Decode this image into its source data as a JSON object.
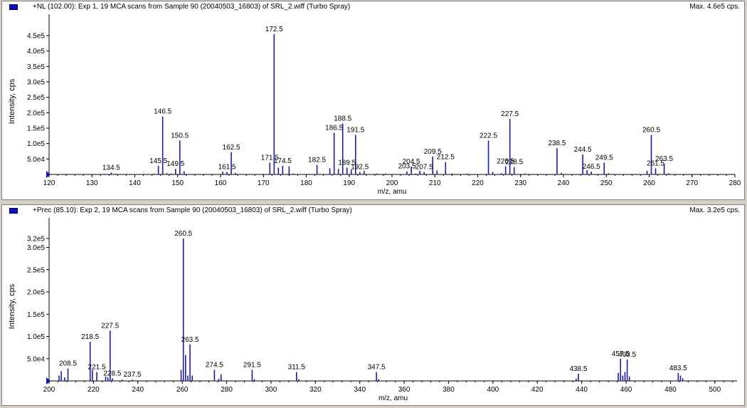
{
  "colors": {
    "peak": "#1c1c9c",
    "marker": "#1010c0",
    "axis": "#000000"
  },
  "chart_data": [
    {
      "type": "bar",
      "title": "+NL (102.00): Exp 1, 19 MCA scans from Sample 90 (20040503_16803) of SRL_2.wiff (Turbo Spray)",
      "max_label": "Max. 4.6e5 cps.",
      "xlabel": "m/z, amu",
      "ylabel": "Intensity, cps",
      "xlim": [
        120,
        280
      ],
      "ylim": [
        0,
        460000
      ],
      "x_ticks": [
        120,
        130,
        140,
        150,
        160,
        170,
        180,
        190,
        200,
        210,
        220,
        230,
        240,
        250,
        260,
        270,
        280
      ],
      "y_ticks": [
        {
          "v": 50000,
          "label": "5.0e4"
        },
        {
          "v": 100000,
          "label": "1.0e5"
        },
        {
          "v": 150000,
          "label": "1.5e5"
        },
        {
          "v": 200000,
          "label": "2.0e5"
        },
        {
          "v": 250000,
          "label": "2.5e5"
        },
        {
          "v": 300000,
          "label": "3.0e5"
        },
        {
          "v": 350000,
          "label": "3.5e5"
        },
        {
          "v": 400000,
          "label": "4.0e5"
        },
        {
          "v": 450000,
          "label": "4.5e5"
        }
      ],
      "peaks": [
        {
          "x": 133.0,
          "y": 2000
        },
        {
          "x": 134.5,
          "y": 6000,
          "label": "134.5"
        },
        {
          "x": 135.5,
          "y": 2000
        },
        {
          "x": 144.5,
          "y": 3000
        },
        {
          "x": 145.5,
          "y": 28000,
          "label": "145.5"
        },
        {
          "x": 146.5,
          "y": 188000,
          "label": "146.5"
        },
        {
          "x": 147.5,
          "y": 4000
        },
        {
          "x": 148.5,
          "y": 3000
        },
        {
          "x": 149.5,
          "y": 18000,
          "label": "149.5"
        },
        {
          "x": 150.5,
          "y": 110000,
          "label": "150.5"
        },
        {
          "x": 151.5,
          "y": 10000
        },
        {
          "x": 160.5,
          "y": 9000
        },
        {
          "x": 161.5,
          "y": 8000,
          "label": "161.5"
        },
        {
          "x": 162.5,
          "y": 72000,
          "label": "162.5"
        },
        {
          "x": 163.5,
          "y": 5000
        },
        {
          "x": 171.5,
          "y": 38000,
          "label": "171.5"
        },
        {
          "x": 172.5,
          "y": 455000,
          "label": "172.5"
        },
        {
          "x": 173.5,
          "y": 22000
        },
        {
          "x": 174.5,
          "y": 28000,
          "label": "174.5"
        },
        {
          "x": 176.0,
          "y": 26000
        },
        {
          "x": 177.0,
          "y": 3000
        },
        {
          "x": 182.5,
          "y": 31000,
          "label": "182.5"
        },
        {
          "x": 185.5,
          "y": 20000
        },
        {
          "x": 186.5,
          "y": 135000,
          "label": "186.5"
        },
        {
          "x": 187.5,
          "y": 18000
        },
        {
          "x": 188.5,
          "y": 165000,
          "label": "188.5"
        },
        {
          "x": 189.5,
          "y": 22000,
          "label": "189.5"
        },
        {
          "x": 190.5,
          "y": 16000
        },
        {
          "x": 191.5,
          "y": 128000,
          "label": "191.5"
        },
        {
          "x": 192.5,
          "y": 8000,
          "label": "192.5"
        },
        {
          "x": 193.5,
          "y": 12000
        },
        {
          "x": 196.5,
          "y": 3000
        },
        {
          "x": 198.5,
          "y": 3000
        },
        {
          "x": 203.5,
          "y": 10000,
          "label": "203.5"
        },
        {
          "x": 204.5,
          "y": 25000,
          "label": "204.5"
        },
        {
          "x": 205.5,
          "y": 3000
        },
        {
          "x": 206.5,
          "y": 12000
        },
        {
          "x": 207.5,
          "y": 8000,
          "label": "207.5"
        },
        {
          "x": 209.5,
          "y": 58000,
          "label": "209.5"
        },
        {
          "x": 210.5,
          "y": 13000
        },
        {
          "x": 212.5,
          "y": 40000,
          "label": "212.5"
        },
        {
          "x": 214.0,
          "y": 3000
        },
        {
          "x": 217.5,
          "y": 3000
        },
        {
          "x": 222.5,
          "y": 110000,
          "label": "222.5"
        },
        {
          "x": 223.5,
          "y": 8000
        },
        {
          "x": 225.5,
          "y": 4000
        },
        {
          "x": 226.5,
          "y": 26000,
          "label": "226.5"
        },
        {
          "x": 227.5,
          "y": 180000,
          "label": "227.5"
        },
        {
          "x": 228.5,
          "y": 24000,
          "label": "228.5"
        },
        {
          "x": 231.0,
          "y": 3000
        },
        {
          "x": 238.5,
          "y": 85000,
          "label": "238.5"
        },
        {
          "x": 239.5,
          "y": 5000
        },
        {
          "x": 244.5,
          "y": 65000,
          "label": "244.5"
        },
        {
          "x": 245.5,
          "y": 14000
        },
        {
          "x": 246.5,
          "y": 9000,
          "label": "246.5"
        },
        {
          "x": 249.5,
          "y": 38000,
          "label": "249.5"
        },
        {
          "x": 250.5,
          "y": 4000
        },
        {
          "x": 259.5,
          "y": 12000
        },
        {
          "x": 260.5,
          "y": 128000,
          "label": "260.5"
        },
        {
          "x": 261.5,
          "y": 20000,
          "label": "261.5"
        },
        {
          "x": 263.5,
          "y": 35000,
          "label": "263.5"
        },
        {
          "x": 264.5,
          "y": 4000
        }
      ]
    },
    {
      "type": "bar",
      "title": "+Prec (85.10): Exp 2, 19 MCA scans from Sample 90 (20040503_16803) of SRL_2.wiff (Turbo Spray)",
      "max_label": "Max. 3.2e5 cps.",
      "xlabel": "m/z, amu",
      "ylabel": "Intensity, cps",
      "xlim": [
        200,
        510
      ],
      "ylim": [
        0,
        330000
      ],
      "x_ticks": [
        200,
        220,
        240,
        260,
        280,
        300,
        320,
        340,
        360,
        380,
        400,
        420,
        440,
        460,
        480,
        500
      ],
      "y_ticks": [
        {
          "v": 50000,
          "label": "5.0e4"
        },
        {
          "v": 100000,
          "label": "1.0e5"
        },
        {
          "v": 150000,
          "label": "1.5e5"
        },
        {
          "v": 200000,
          "label": "2.0e5"
        },
        {
          "v": 250000,
          "label": "2.5e5"
        },
        {
          "v": 300000,
          "label": "3.0e5"
        },
        {
          "v": 320000,
          "label": "3.2e5"
        }
      ],
      "peaks": [
        {
          "x": 204.5,
          "y": 12000
        },
        {
          "x": 205.5,
          "y": 22000
        },
        {
          "x": 207.0,
          "y": 8000
        },
        {
          "x": 208.5,
          "y": 28000,
          "label": "208.5"
        },
        {
          "x": 218.5,
          "y": 88000,
          "label": "218.5"
        },
        {
          "x": 219.5,
          "y": 25000
        },
        {
          "x": 221.5,
          "y": 20000,
          "label": "221.5"
        },
        {
          "x": 225.5,
          "y": 10000
        },
        {
          "x": 226.5,
          "y": 8000
        },
        {
          "x": 227.5,
          "y": 113000,
          "label": "227.5"
        },
        {
          "x": 228.5,
          "y": 6000,
          "label": "228.5"
        },
        {
          "x": 233.0,
          "y": 3000
        },
        {
          "x": 237.5,
          "y": 3000,
          "label": "237.5"
        },
        {
          "x": 259.5,
          "y": 25000
        },
        {
          "x": 260.5,
          "y": 320000,
          "label": "260.5"
        },
        {
          "x": 261.5,
          "y": 58000
        },
        {
          "x": 262.5,
          "y": 12000
        },
        {
          "x": 263.5,
          "y": 82000,
          "label": "263.5"
        },
        {
          "x": 264.5,
          "y": 12000
        },
        {
          "x": 274.5,
          "y": 25000,
          "label": "274.5"
        },
        {
          "x": 276.5,
          "y": 5000
        },
        {
          "x": 277.5,
          "y": 15000
        },
        {
          "x": 291.5,
          "y": 25000,
          "label": "291.5"
        },
        {
          "x": 292.5,
          "y": 4000
        },
        {
          "x": 311.5,
          "y": 20000,
          "label": "311.5"
        },
        {
          "x": 312.5,
          "y": 4000
        },
        {
          "x": 347.5,
          "y": 20000,
          "label": "347.5"
        },
        {
          "x": 348.5,
          "y": 4000
        },
        {
          "x": 437.5,
          "y": 5000
        },
        {
          "x": 438.5,
          "y": 16000,
          "label": "438.5"
        },
        {
          "x": 456.5,
          "y": 18000
        },
        {
          "x": 457.5,
          "y": 50000,
          "label": "457.5"
        },
        {
          "x": 458.5,
          "y": 12000
        },
        {
          "x": 459.5,
          "y": 20000
        },
        {
          "x": 460.5,
          "y": 48000,
          "label": "460.5"
        },
        {
          "x": 461.5,
          "y": 10000
        },
        {
          "x": 483.5,
          "y": 18000,
          "label": "483.5"
        },
        {
          "x": 484.5,
          "y": 12000
        },
        {
          "x": 485.5,
          "y": 6000
        }
      ]
    }
  ]
}
